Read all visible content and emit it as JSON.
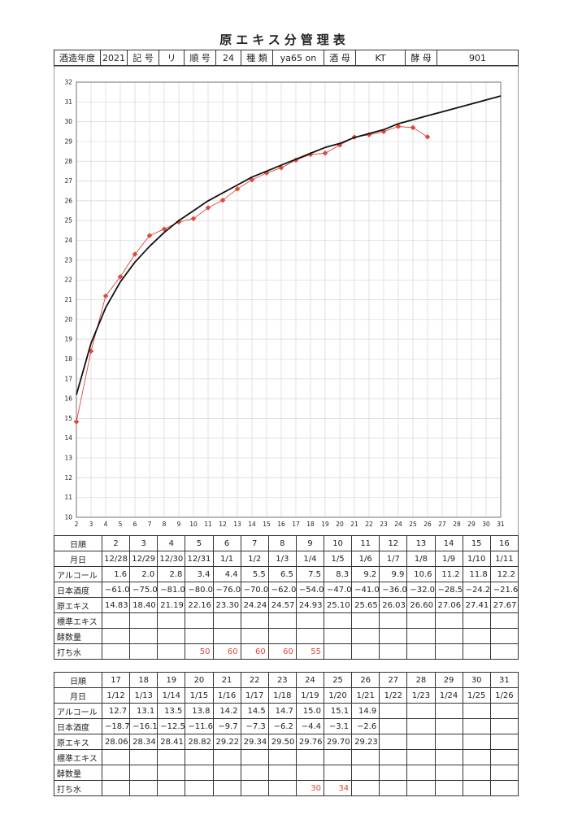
{
  "title": "原エキス分管理表",
  "header": {
    "year_label": "酒造年度",
    "year": "2021",
    "symbol_label": "記 号",
    "symbol": "リ",
    "order_label": "順 号",
    "order": "24",
    "kind_label": "種 類",
    "kind": "ya65 on",
    "moto_label": "酒 母",
    "moto": "KT",
    "yeast_label": "酵 母",
    "yeast": "901"
  },
  "row_labels": {
    "day": "日順",
    "date": "月日",
    "alcohol": "アルコール",
    "smv": "日本酒度",
    "extract": "原エキス",
    "std_extract": "標準エキス",
    "koji_count": "酵数量",
    "water": "打ち水"
  },
  "table1": {
    "days": [
      "2",
      "3",
      "4",
      "5",
      "6",
      "7",
      "8",
      "9",
      "10",
      "11",
      "12",
      "13",
      "14",
      "15",
      "16"
    ],
    "dates": [
      "12/28",
      "12/29",
      "12/30",
      "12/31",
      "1/1",
      "1/2",
      "1/3",
      "1/4",
      "1/5",
      "1/6",
      "1/7",
      "1/8",
      "1/9",
      "1/10",
      "1/11"
    ],
    "alcohol": [
      "1.6",
      "2.0",
      "2.8",
      "3.4",
      "4.4",
      "5.5",
      "6.5",
      "7.5",
      "8.3",
      "9.2",
      "9.9",
      "10.6",
      "11.2",
      "11.8",
      "12.2"
    ],
    "smv": [
      "−61.0",
      "−75.0",
      "−81.0",
      "−80.0",
      "−76.0",
      "−70.0",
      "−62.0",
      "−54.0",
      "−47.0",
      "−41.0",
      "−36.0",
      "−32.0",
      "−28.5",
      "−24.2",
      "−21.6"
    ],
    "extract": [
      "14.83",
      "18.40",
      "21.19",
      "22.16",
      "23.30",
      "24.24",
      "24.57",
      "24.93",
      "25.10",
      "25.65",
      "26.03",
      "26.60",
      "27.06",
      "27.41",
      "27.67"
    ],
    "std_extract": [
      "",
      "",
      "",
      "",
      "",
      "",
      "",
      "",
      "",
      "",
      "",
      "",
      "",
      "",
      ""
    ],
    "koji_count": [
      "",
      "",
      "",
      "",
      "",
      "",
      "",
      "",
      "",
      "",
      "",
      "",
      "",
      "",
      ""
    ],
    "water": [
      "",
      "",
      "",
      "50",
      "60",
      "60",
      "60",
      "55",
      "",
      "",
      "",
      "",
      "",
      "",
      ""
    ]
  },
  "table2": {
    "days": [
      "17",
      "18",
      "19",
      "20",
      "21",
      "22",
      "23",
      "24",
      "25",
      "26",
      "27",
      "28",
      "29",
      "30",
      "31"
    ],
    "dates": [
      "1/12",
      "1/13",
      "1/14",
      "1/15",
      "1/16",
      "1/17",
      "1/18",
      "1/19",
      "1/20",
      "1/21",
      "1/22",
      "1/23",
      "1/24",
      "1/25",
      "1/26"
    ],
    "alcohol": [
      "12.7",
      "13.1",
      "13.5",
      "13.8",
      "14.2",
      "14.5",
      "14.7",
      "15.0",
      "15.1",
      "14.9",
      "",
      "",
      "",
      "",
      ""
    ],
    "smv": [
      "−18.7",
      "−16.1",
      "−12.5",
      "−11.6",
      "−9.7",
      "−7.3",
      "−6.2",
      "−4.4",
      "−3.1",
      "−2.6",
      "",
      "",
      "",
      "",
      ""
    ],
    "extract": [
      "28.06",
      "28.34",
      "28.41",
      "28.82",
      "29.22",
      "29.34",
      "29.50",
      "29.76",
      "29.70",
      "29.23",
      "",
      "",
      "",
      "",
      ""
    ],
    "std_extract": [
      "",
      "",
      "",
      "",
      "",
      "",
      "",
      "",
      "",
      "",
      "",
      "",
      "",
      "",
      ""
    ],
    "koji_count": [
      "",
      "",
      "",
      "",
      "",
      "",
      "",
      "",
      "",
      "",
      "",
      "",
      "",
      "",
      ""
    ],
    "water": [
      "",
      "",
      "",
      "",
      "",
      "",
      "",
      "30",
      "34",
      "",
      "",
      "",
      "",
      "",
      ""
    ]
  },
  "chart_data": {
    "type": "line",
    "xlim": [
      2,
      31
    ],
    "ylim": [
      10,
      32
    ],
    "xticks": [
      "2",
      "3",
      "4",
      "5",
      "6",
      "7",
      "8",
      "9",
      "10",
      "11",
      "12",
      "13",
      "14",
      "15",
      "16",
      "17",
      "18",
      "19",
      "20",
      "21",
      "22",
      "23",
      "24",
      "25",
      "26",
      "27",
      "28",
      "29",
      "30",
      "31"
    ],
    "yticks": [
      "10",
      "11",
      "12",
      "13",
      "14",
      "15",
      "16",
      "17",
      "18",
      "19",
      "20",
      "21",
      "22",
      "23",
      "24",
      "25",
      "26",
      "27",
      "28",
      "29",
      "30",
      "31",
      "32"
    ],
    "grid": true,
    "series": [
      {
        "color": "#e0473a",
        "x": [
          2,
          3,
          4,
          5,
          6,
          7,
          8,
          9,
          10,
          11,
          12,
          13,
          14,
          15,
          16,
          17,
          18,
          19,
          20,
          21,
          22,
          23,
          24,
          25,
          26
        ],
        "y": [
          14.83,
          18.4,
          21.19,
          22.16,
          23.3,
          24.24,
          24.57,
          24.93,
          25.1,
          25.65,
          26.03,
          26.6,
          27.06,
          27.41,
          27.67,
          28.06,
          28.34,
          28.41,
          28.82,
          29.22,
          29.34,
          29.5,
          29.76,
          29.7,
          29.23
        ]
      },
      {
        "color": "#111111",
        "x": [
          2,
          3,
          4,
          5,
          6,
          7,
          8,
          9,
          10,
          11,
          12,
          13,
          14,
          15,
          16,
          17,
          18,
          19,
          20,
          21,
          22,
          23,
          24,
          25,
          26,
          27,
          28,
          29,
          30,
          31
        ],
        "y": [
          16.2,
          18.8,
          20.6,
          21.9,
          22.9,
          23.7,
          24.4,
          25.0,
          25.5,
          26.0,
          26.4,
          26.8,
          27.2,
          27.5,
          27.8,
          28.1,
          28.4,
          28.7,
          28.9,
          29.2,
          29.4,
          29.6,
          29.9,
          30.1,
          30.3,
          30.5,
          30.7,
          30.9,
          31.1,
          31.3
        ]
      }
    ]
  }
}
